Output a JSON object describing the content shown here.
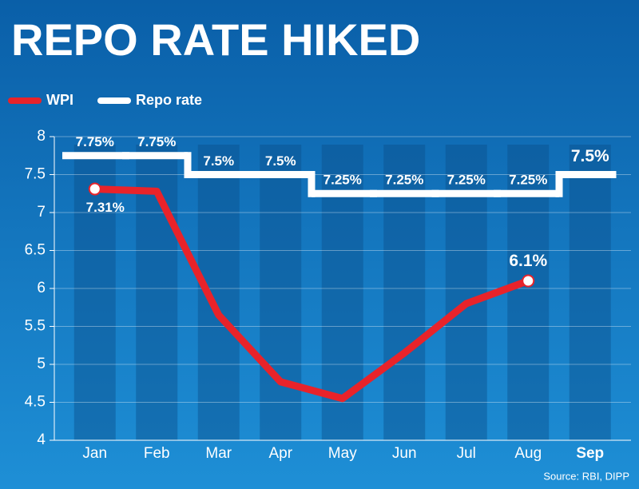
{
  "chart_data": {
    "type": "line",
    "title": "REPO RATE HIKED",
    "source": "Source: RBI, DIPP",
    "categories": [
      "Jan",
      "Feb",
      "Mar",
      "Apr",
      "May",
      "Jun",
      "Jul",
      "Aug",
      "Sep"
    ],
    "series": [
      {
        "name": "WPI",
        "color": "#e8232a",
        "style": "line",
        "values": [
          7.31,
          7.28,
          5.65,
          4.77,
          4.55,
          5.15,
          5.8,
          6.1,
          null
        ],
        "value_labels": [
          "7.31%",
          null,
          null,
          null,
          null,
          null,
          null,
          "6.1%",
          null
        ]
      },
      {
        "name": "Repo rate",
        "color": "#ffffff",
        "style": "step",
        "values": [
          7.75,
          7.75,
          7.5,
          7.5,
          7.25,
          7.25,
          7.25,
          7.25,
          7.5
        ],
        "value_labels": [
          "7.75%",
          "7.75%",
          "7.5%",
          "7.5%",
          "7.25%",
          "7.25%",
          "7.25%",
          "7.25%",
          "7.5%"
        ]
      }
    ],
    "ylim": [
      4,
      8
    ],
    "yticks": [
      4,
      4.5,
      5,
      5.5,
      6,
      6.5,
      7,
      7.5,
      8
    ],
    "grid": true
  }
}
